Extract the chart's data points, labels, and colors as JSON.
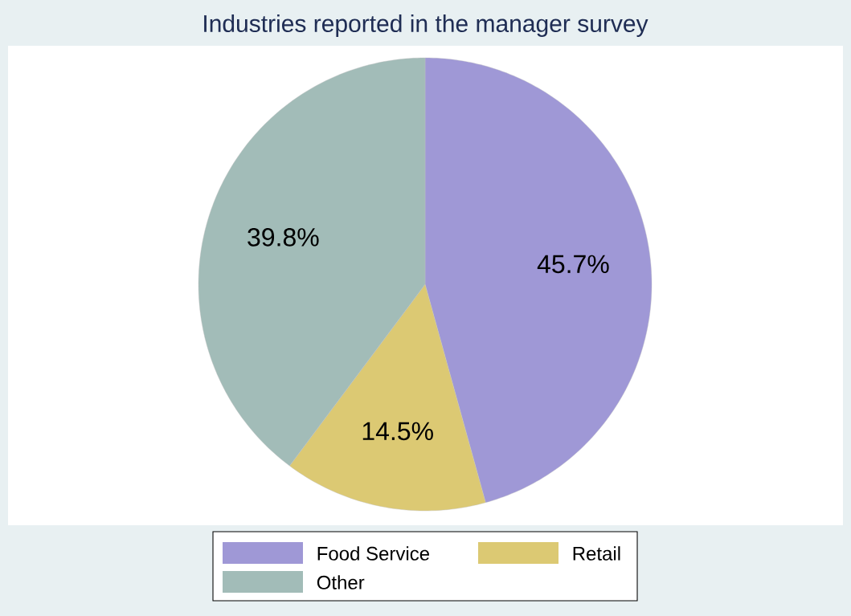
{
  "chart_data": {
    "type": "pie",
    "title": "Industries reported in the manager survey",
    "categories": [
      "Food Service",
      "Retail",
      "Other"
    ],
    "values": [
      45.7,
      14.5,
      39.8
    ],
    "colors": [
      "#9f98d6",
      "#dcc973",
      "#a2bcb8"
    ],
    "value_labels": [
      "45.7%",
      "14.5%",
      "39.8%"
    ],
    "legend": "bottom"
  }
}
